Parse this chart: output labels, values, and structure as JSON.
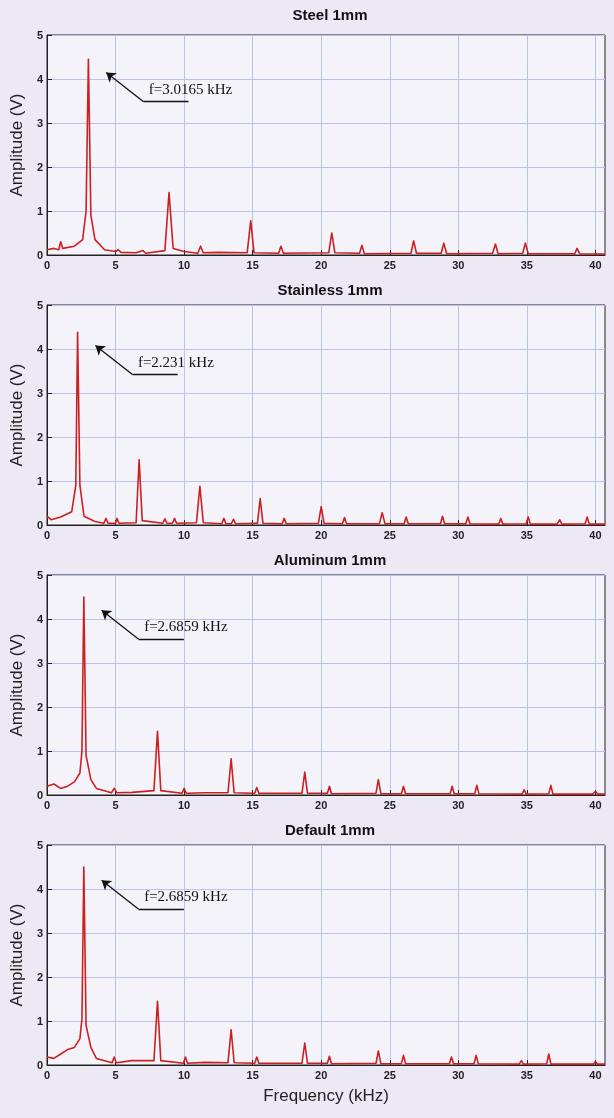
{
  "chart_data": [
    {
      "type": "line",
      "title": "Steel 1mm",
      "ylabel": "Amplitude (V)",
      "xlim": [
        0,
        40.7
      ],
      "xticks": [
        0,
        5,
        10,
        15,
        20,
        25,
        30,
        35,
        40
      ],
      "ylim": [
        0,
        5
      ],
      "yticks": [
        0,
        1,
        2,
        3,
        4,
        5
      ],
      "grid": true,
      "marker": "none",
      "line_style": "solid",
      "annotations": [
        "f=3.0165 kHz"
      ],
      "series": [
        {
          "color": "#cc2020",
          "x": [
            0,
            0.5,
            0.85,
            1.0,
            1.15,
            2.0,
            2.6,
            2.85,
            3.02,
            3.2,
            3.5,
            4.2,
            5.0,
            5.2,
            5.4,
            6.5,
            7.0,
            7.2,
            8.6,
            8.9,
            9.2,
            10.0,
            11.0,
            11.2,
            11.4,
            12.5,
            14.6,
            14.86,
            15.1,
            16.9,
            17.06,
            17.25,
            20.55,
            20.77,
            21.0,
            22.8,
            22.97,
            23.15,
            26.55,
            26.74,
            26.95,
            28.75,
            28.94,
            29.15,
            32.5,
            32.71,
            32.9,
            34.7,
            34.89,
            35.1,
            38.5,
            38.66,
            38.85,
            40.7
          ],
          "values": [
            0.12,
            0.15,
            0.12,
            0.3,
            0.15,
            0.2,
            0.35,
            1.0,
            4.45,
            0.9,
            0.35,
            0.12,
            0.08,
            0.12,
            0.06,
            0.05,
            0.1,
            0.04,
            0.1,
            1.42,
            0.15,
            0.08,
            0.04,
            0.2,
            0.05,
            0.06,
            0.05,
            0.78,
            0.05,
            0.04,
            0.2,
            0.04,
            0.05,
            0.5,
            0.05,
            0.04,
            0.22,
            0.03,
            0.04,
            0.32,
            0.04,
            0.04,
            0.27,
            0.03,
            0.04,
            0.25,
            0.03,
            0.04,
            0.27,
            0.03,
            0.03,
            0.15,
            0.03,
            0.02
          ]
        }
      ]
    },
    {
      "type": "line",
      "title": "Stainless 1mm",
      "ylabel": "Amplitude (V)",
      "xlim": [
        0,
        40.7
      ],
      "xticks": [
        0,
        5,
        10,
        15,
        20,
        25,
        30,
        35,
        40
      ],
      "ylim": [
        0,
        5
      ],
      "yticks": [
        0,
        1,
        2,
        3,
        4,
        5
      ],
      "grid": true,
      "marker": "none",
      "line_style": "solid",
      "annotations": [
        "f=2.231 kHz"
      ],
      "series": [
        {
          "color": "#cc2020",
          "x": [
            0,
            0.3,
            1.0,
            1.8,
            2.1,
            2.231,
            2.4,
            2.7,
            3.5,
            4.15,
            4.3,
            4.45,
            5.0,
            5.1,
            5.25,
            6.5,
            6.72,
            6.95,
            8.45,
            8.6,
            8.75,
            9.15,
            9.3,
            9.45,
            10.9,
            11.15,
            11.4,
            12.75,
            12.9,
            13.05,
            13.45,
            13.6,
            13.75,
            15.35,
            15.55,
            15.75,
            17.15,
            17.3,
            17.45,
            19.8,
            20.0,
            20.2,
            21.55,
            21.7,
            21.85,
            24.25,
            24.45,
            24.65,
            26.05,
            26.2,
            26.35,
            28.7,
            28.85,
            29.0,
            30.55,
            30.7,
            30.85,
            32.95,
            33.1,
            33.25,
            34.95,
            35.1,
            35.25,
            37.2,
            37.4,
            37.55,
            39.25,
            39.4,
            39.55,
            40.7
          ],
          "values": [
            0.2,
            0.12,
            0.18,
            0.3,
            0.9,
            4.38,
            0.9,
            0.2,
            0.08,
            0.04,
            0.15,
            0.04,
            0.04,
            0.15,
            0.04,
            0.05,
            1.48,
            0.1,
            0.04,
            0.14,
            0.04,
            0.04,
            0.15,
            0.04,
            0.05,
            0.88,
            0.05,
            0.03,
            0.15,
            0.03,
            0.03,
            0.13,
            0.03,
            0.04,
            0.6,
            0.04,
            0.03,
            0.15,
            0.03,
            0.04,
            0.42,
            0.04,
            0.03,
            0.17,
            0.03,
            0.03,
            0.28,
            0.03,
            0.03,
            0.18,
            0.03,
            0.03,
            0.2,
            0.03,
            0.03,
            0.18,
            0.03,
            0.02,
            0.15,
            0.02,
            0.03,
            0.18,
            0.02,
            0.02,
            0.12,
            0.02,
            0.03,
            0.18,
            0.02,
            0.02
          ]
        }
      ]
    },
    {
      "type": "line",
      "title": "Aluminum 1mm",
      "ylabel": "Amplitude (V)",
      "xlim": [
        0,
        40.7
      ],
      "xticks": [
        0,
        5,
        10,
        15,
        20,
        25,
        30,
        35,
        40
      ],
      "ylim": [
        0,
        5
      ],
      "yticks": [
        0,
        1,
        2,
        3,
        4,
        5
      ],
      "grid": true,
      "marker": "none",
      "line_style": "solid",
      "annotations": [
        "f=2.6859 kHz"
      ],
      "series": [
        {
          "color": "#cc2020",
          "x": [
            0,
            0.5,
            1.0,
            1.5,
            2.0,
            2.4,
            2.55,
            2.6859,
            2.85,
            3.2,
            3.6,
            4.7,
            4.9,
            5.1,
            6.2,
            7.8,
            8.06,
            8.3,
            9.85,
            10.0,
            10.15,
            11.5,
            13.2,
            13.43,
            13.65,
            15.15,
            15.3,
            15.45,
            18.6,
            18.8,
            19.0,
            20.45,
            20.6,
            20.75,
            24.0,
            24.17,
            24.35,
            25.85,
            26.0,
            26.15,
            29.4,
            29.55,
            29.7,
            31.2,
            31.35,
            31.5,
            34.65,
            34.8,
            34.95,
            36.6,
            36.75,
            36.9,
            39.8,
            40.0,
            40.2,
            40.7
          ],
          "values": [
            0.2,
            0.25,
            0.15,
            0.2,
            0.3,
            0.5,
            1.0,
            4.5,
            0.9,
            0.35,
            0.15,
            0.05,
            0.15,
            0.05,
            0.06,
            0.1,
            1.45,
            0.1,
            0.04,
            0.15,
            0.04,
            0.05,
            0.05,
            0.82,
            0.05,
            0.04,
            0.17,
            0.04,
            0.04,
            0.52,
            0.04,
            0.04,
            0.2,
            0.03,
            0.04,
            0.35,
            0.03,
            0.03,
            0.2,
            0.03,
            0.03,
            0.2,
            0.03,
            0.03,
            0.22,
            0.03,
            0.02,
            0.12,
            0.02,
            0.03,
            0.22,
            0.02,
            0.02,
            0.08,
            0.02,
            0.02
          ]
        }
      ]
    },
    {
      "type": "line",
      "title": "Default 1mm",
      "xlabel": "Frequency (kHz)",
      "ylabel": "Amplitude (V)",
      "xlim": [
        0,
        40.7
      ],
      "xticks": [
        0,
        5,
        10,
        15,
        20,
        25,
        30,
        35,
        40
      ],
      "ylim": [
        0,
        5
      ],
      "yticks": [
        0,
        1,
        2,
        3,
        4,
        5
      ],
      "grid": true,
      "marker": "none",
      "line_style": "solid",
      "annotations": [
        "f=2.6859 kHz"
      ],
      "series": [
        {
          "color": "#cc2020",
          "x": [
            0,
            0.5,
            1.0,
            1.5,
            2.0,
            2.4,
            2.55,
            2.6859,
            2.85,
            3.2,
            3.6,
            4.75,
            4.9,
            5.05,
            6.2,
            7.8,
            8.06,
            8.3,
            9.95,
            10.1,
            10.25,
            11.5,
            13.2,
            13.43,
            13.65,
            15.15,
            15.3,
            15.45,
            18.6,
            18.8,
            19.0,
            20.45,
            20.6,
            20.75,
            24.0,
            24.17,
            24.35,
            25.85,
            26.0,
            26.15,
            29.35,
            29.5,
            29.65,
            31.15,
            31.3,
            31.45,
            34.45,
            34.6,
            34.75,
            36.45,
            36.6,
            36.75,
            39.85,
            40.0,
            40.15,
            40.7
          ],
          "values": [
            0.18,
            0.15,
            0.25,
            0.35,
            0.4,
            0.6,
            1.05,
            4.5,
            0.9,
            0.4,
            0.15,
            0.05,
            0.18,
            0.05,
            0.1,
            0.1,
            1.45,
            0.1,
            0.04,
            0.18,
            0.04,
            0.06,
            0.05,
            0.8,
            0.05,
            0.04,
            0.18,
            0.04,
            0.04,
            0.5,
            0.04,
            0.04,
            0.2,
            0.03,
            0.04,
            0.32,
            0.03,
            0.03,
            0.22,
            0.03,
            0.03,
            0.18,
            0.03,
            0.03,
            0.22,
            0.03,
            0.02,
            0.1,
            0.02,
            0.03,
            0.25,
            0.02,
            0.02,
            0.08,
            0.02,
            0.02
          ]
        }
      ]
    }
  ]
}
